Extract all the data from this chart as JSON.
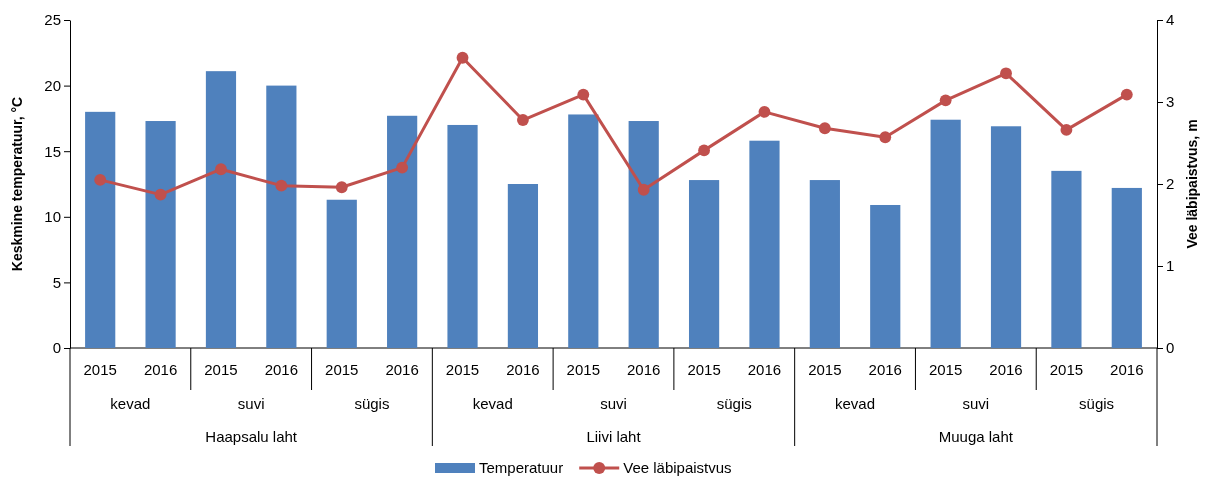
{
  "chart_data": {
    "type": "bar",
    "ylabel": "Keskmine temperatuur, °C",
    "y2label": "Vee läbipaistvus, m",
    "categories": [
      "2015",
      "2016",
      "2015",
      "2016",
      "2015",
      "2016",
      "2015",
      "2016",
      "2015",
      "2016",
      "2015",
      "2016",
      "2015",
      "2016",
      "2015",
      "2016",
      "2015",
      "2016"
    ],
    "series": [
      {
        "name": "Temperatuur",
        "color": "#4f81bd",
        "values": [
          18.0,
          17.3,
          21.1,
          20.0,
          11.3,
          17.7,
          17.0,
          12.5,
          17.8,
          17.3,
          12.8,
          15.8,
          12.8,
          10.9,
          17.4,
          16.9,
          13.5,
          12.2
        ]
      },
      {
        "name": "Vee läbipaistvus",
        "type": "line",
        "axis": "y2",
        "color": "#c0504d",
        "marker": "circle",
        "values": [
          2.05,
          1.87,
          2.18,
          1.98,
          1.96,
          2.2,
          3.54,
          2.78,
          3.09,
          1.93,
          2.41,
          2.88,
          2.68,
          2.57,
          3.02,
          3.35,
          2.66,
          3.09
        ]
      }
    ],
    "annotations": [
      "kevad",
      "suvi",
      "sügis",
      "kevad",
      "suvi",
      "sügis",
      "kevad",
      "suvi",
      "sügis",
      "Haapsalu laht",
      "Liivi laht",
      "Muuga laht"
    ],
    "ylim": [
      0,
      25
    ],
    "yticks": [
      0,
      5,
      10,
      15,
      20,
      25
    ],
    "y2lim": [
      0,
      4
    ],
    "y2ticks": [
      0,
      1,
      2,
      3,
      4
    ],
    "grid": false,
    "legend": "bottom"
  }
}
